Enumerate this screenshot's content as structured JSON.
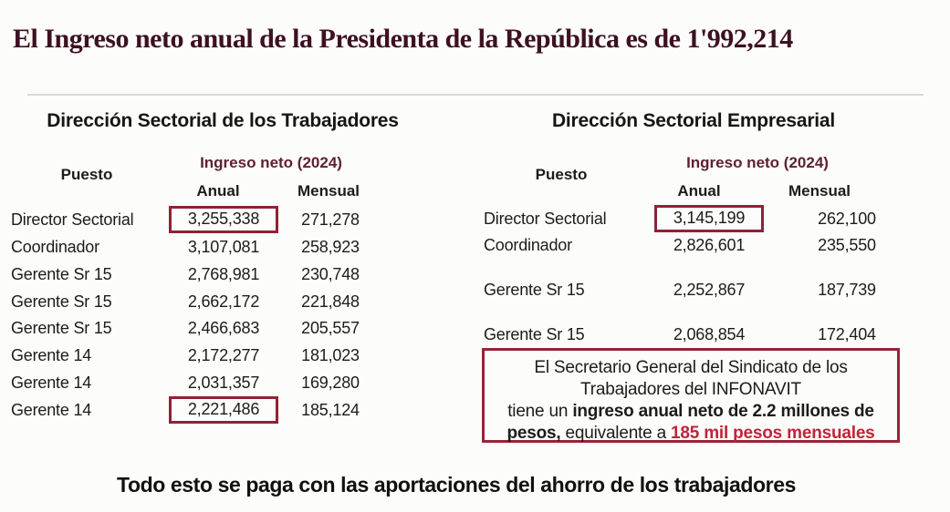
{
  "title": "El Ingreso neto anual de la Presidenta de la República es de 1'992,214",
  "colors": {
    "background": "#fcfdfa",
    "title_maroon": "#3d1122",
    "group_header_maroon": "#5e2130",
    "highlight_box_border": "#8e2236",
    "highlight_text_red": "#c02339",
    "body_text": "#1c1c1c"
  },
  "left_table": {
    "title": "Dirección Sectorial de los Trabajadores",
    "headers": {
      "puesto": "Puesto",
      "group": "Ingreso neto (2024)",
      "anual": "Anual",
      "mensual": "Mensual"
    },
    "rows": [
      {
        "puesto": "Director Sectorial",
        "anual": "3,255,338",
        "mensual": "271,278",
        "anual_boxed": true
      },
      {
        "puesto": "Coordinador",
        "anual": "3,107,081",
        "mensual": "258,923",
        "anual_boxed": false
      },
      {
        "puesto": "Gerente Sr 15",
        "anual": "2,768,981",
        "mensual": "230,748",
        "anual_boxed": false
      },
      {
        "puesto": "Gerente Sr 15",
        "anual": "2,662,172",
        "mensual": "221,848",
        "anual_boxed": false
      },
      {
        "puesto": "Gerente Sr 15",
        "anual": "2,466,683",
        "mensual": "205,557",
        "anual_boxed": false
      },
      {
        "puesto": "Gerente 14",
        "anual": "2,172,277",
        "mensual": "181,023",
        "anual_boxed": false
      },
      {
        "puesto": "Gerente 14",
        "anual": "2,031,357",
        "mensual": "169,280",
        "anual_boxed": false
      },
      {
        "puesto": "Gerente 14",
        "anual": "2,221,486",
        "mensual": "185,124",
        "anual_boxed": true
      }
    ]
  },
  "right_table": {
    "title": "Dirección Sectorial Empresarial",
    "headers": {
      "puesto": "Puesto",
      "group": "Ingreso neto (2024)",
      "anual": "Anual",
      "mensual": "Mensual"
    },
    "rows": [
      {
        "puesto": "Director Sectorial",
        "anual": "3,145,199",
        "mensual": "262,100",
        "anual_boxed": true
      },
      {
        "puesto": "Coordinador",
        "anual": "2,826,601",
        "mensual": "235,550",
        "anual_boxed": false
      },
      {
        "puesto": "Gerente Sr 15",
        "anual": "2,252,867",
        "mensual": "187,739",
        "anual_boxed": false
      },
      {
        "puesto": "Gerente Sr 15",
        "anual": "2,068,854",
        "mensual": "172,404",
        "anual_boxed": false
      }
    ]
  },
  "info_box": {
    "line1": "El Secretario General del Sindicato de los",
    "line2": "Trabajadores del INFONAVIT",
    "line3_regular": "tiene un ",
    "line3_bold": "ingreso anual neto de 2.2 millones de",
    "line4_bold": "pesos,",
    "line4_regular": "  equivalente a ",
    "line4_red": "185 mil pesos mensuales"
  },
  "footer": "Todo esto se paga con las aportaciones del ahorro de los trabajadores"
}
